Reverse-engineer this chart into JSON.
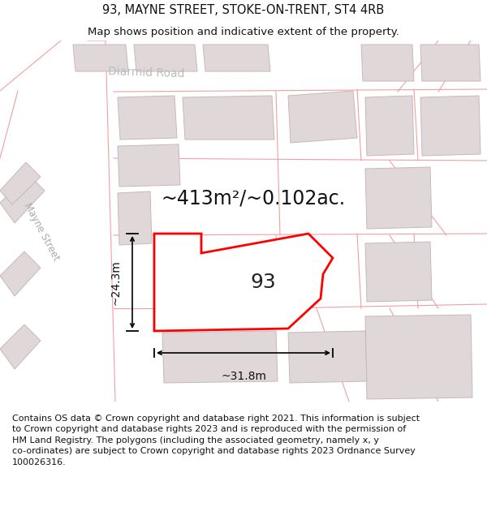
{
  "title": "93, MAYNE STREET, STOKE-ON-TRENT, ST4 4RB",
  "subtitle": "Map shows position and indicative extent of the property.",
  "area_label": "~413m²/~0.102ac.",
  "number_label": "93",
  "dim_horizontal": "~31.8m",
  "dim_vertical": "~24.3m",
  "footer_line1": "Contains OS data © Crown copyright and database right 2021. This information is subject",
  "footer_line2": "to Crown copyright and database rights 2023 and is reproduced with the permission of",
  "footer_line3": "HM Land Registry. The polygons (including the associated geometry, namely x, y",
  "footer_line4": "co-ordinates) are subject to Crown copyright and database rights 2023 Ordnance Survey",
  "footer_line5": "100026316.",
  "map_bg": "#f2eded",
  "building_fill": "#e0d8d8",
  "building_edge": "#c8b8b8",
  "plot_fill": "#ffffff",
  "plot_edge": "#ff0000",
  "road_fill": "#ffffff",
  "pink_line": "#f0a0a0",
  "street_label1": "Mayne Street",
  "street_label2": "Diarmid Road",
  "title_fontsize": 10.5,
  "subtitle_fontsize": 9.5,
  "footer_fontsize": 8.0,
  "area_fontsize": 17,
  "number_fontsize": 18,
  "dim_fontsize": 10
}
